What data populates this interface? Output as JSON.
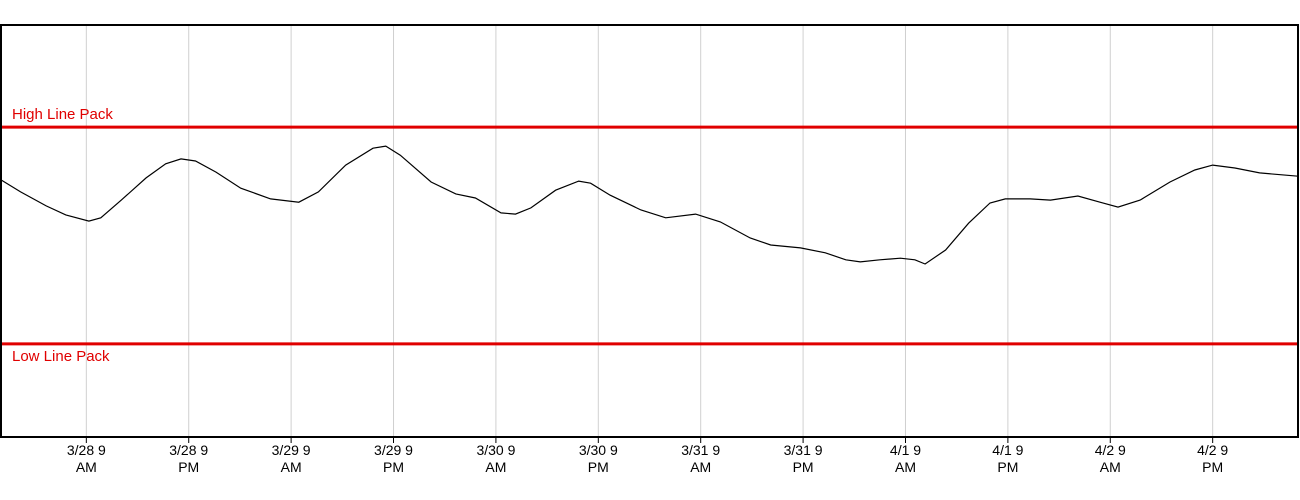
{
  "chart_data": {
    "type": "line",
    "x": [
      -1.0,
      1.3,
      4.3,
      6.6,
      9.3,
      10.7,
      13.1,
      16.0,
      18.3,
      20.1,
      21.8,
      24.2,
      27.1,
      30.6,
      33.9,
      36.2,
      39.4,
      42.6,
      44.1,
      45.8,
      49.4,
      52.3,
      54.6,
      57.6,
      59.3,
      61.1,
      64.0,
      66.7,
      68.1,
      70.4,
      74.0,
      76.9,
      80.4,
      83.3,
      86.8,
      89.2,
      92.7,
      95.6,
      98.0,
      99.7,
      102.0,
      104.4,
      106.1,
      107.3,
      109.7,
      112.4,
      114.9,
      116.7,
      119.6,
      122.0,
      125.2,
      127.8,
      129.9,
      132.5,
      136.0,
      138.9,
      141.0,
      143.6,
      146.5,
      151.0
    ],
    "values": [
      62.4,
      59.5,
      56.1,
      53.9,
      52.4,
      53.2,
      57.5,
      62.9,
      66.3,
      67.5,
      67.0,
      64.3,
      60.4,
      57.8,
      57.0,
      59.5,
      66.0,
      70.1,
      70.6,
      68.4,
      61.9,
      59.0,
      58.0,
      54.4,
      54.1,
      55.6,
      59.9,
      62.1,
      61.6,
      58.7,
      55.1,
      53.2,
      54.1,
      52.2,
      48.3,
      46.6,
      45.9,
      44.7,
      43.0,
      42.5,
      43.0,
      43.4,
      43.0,
      42.0,
      45.4,
      51.9,
      56.8,
      57.8,
      57.8,
      57.5,
      58.5,
      57.0,
      55.8,
      57.5,
      61.9,
      64.8,
      66.0,
      65.3,
      64.1,
      63.3
    ],
    "color": "#000000",
    "xlim": [
      -1,
      151
    ],
    "xticks": [
      {
        "value": 9,
        "label": "3/28 9 AM"
      },
      {
        "value": 21,
        "label": "3/28 9 PM"
      },
      {
        "value": 33,
        "label": "3/29 9 AM"
      },
      {
        "value": 45,
        "label": "3/29 9 PM"
      },
      {
        "value": 57,
        "label": "3/30 9 AM"
      },
      {
        "value": 69,
        "label": "3/30 9 PM"
      },
      {
        "value": 81,
        "label": "3/31 9 AM"
      },
      {
        "value": 93,
        "label": "3/31 9 PM"
      },
      {
        "value": 105,
        "label": "4/1 9 AM"
      },
      {
        "value": 117,
        "label": "4/1 9 PM"
      },
      {
        "value": 129,
        "label": "4/2 9 AM"
      },
      {
        "value": 141,
        "label": "4/2 9 PM"
      }
    ],
    "ylim": [
      0,
      100
    ],
    "grid": true,
    "reference_lines": [
      {
        "label": "High Line Pack",
        "value": 75.2,
        "color": "#e00000"
      },
      {
        "label": "Low Line Pack",
        "value": 22.6,
        "color": "#e00000"
      }
    ]
  }
}
